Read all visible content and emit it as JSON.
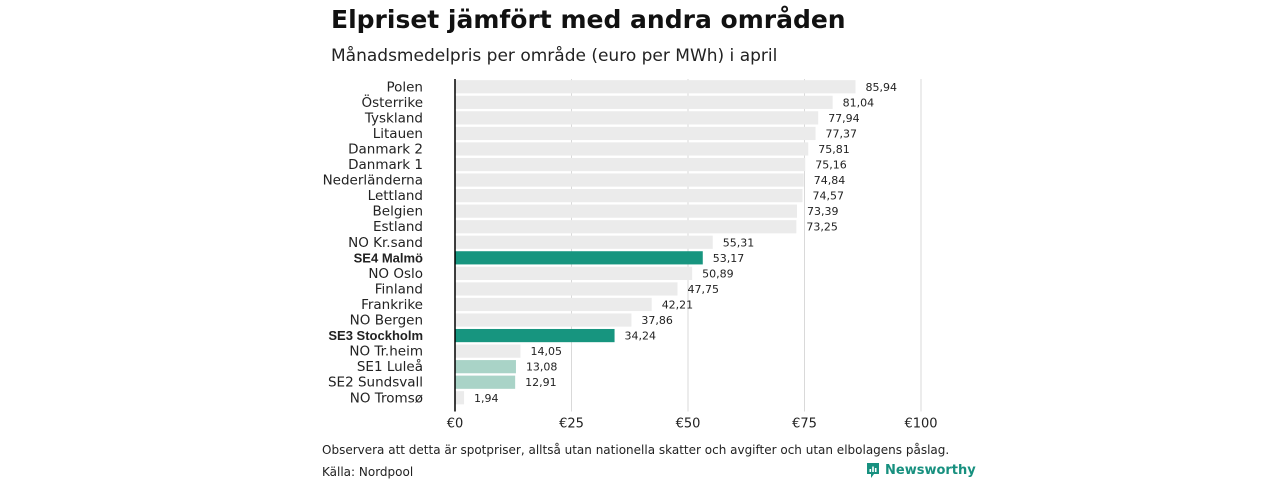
{
  "header": {
    "title": "Elpriset jämfört med andra områden",
    "subtitle": "Månadsmedelpris per område (euro per MWh) i april"
  },
  "footer": {
    "note": "Observera att detta är spotpriser, alltså utan nationella skatter och avgifter och utan elbolagens påslag.",
    "source": "Källa: Nordpool",
    "brand": "Newsworthy"
  },
  "colors": {
    "default_bar": "#ebebeb",
    "highlight_bar": "#17957f",
    "light_highlight_bar": "#a9d3c7",
    "grid": "#d9d9d9",
    "axis": "#000000",
    "brand": "#17907f"
  },
  "chart_data": {
    "type": "bar",
    "orientation": "horizontal",
    "xlim": [
      0,
      100
    ],
    "x_ticks": [
      0,
      25,
      50,
      75,
      100
    ],
    "x_tick_labels": [
      "€0",
      "€25",
      "€50",
      "€75",
      "€100"
    ],
    "grid": true,
    "categories": [
      "Polen",
      "Österrike",
      "Tyskland",
      "Litauen",
      "Danmark  2",
      "Danmark  1",
      "Nederländerna",
      "Lettland",
      "Belgien",
      "Estland",
      "NO Kr.sand",
      "SE4 Malmö",
      "NO Oslo",
      "Finland",
      "Frankrike",
      "NO Bergen",
      "SE3 Stockholm",
      "NO Tr.heim",
      "SE1  Luleå",
      "SE2  Sundsvall",
      "NO Tromsø"
    ],
    "values": [
      85.94,
      81.04,
      77.94,
      77.37,
      75.81,
      75.16,
      74.84,
      74.57,
      73.39,
      73.25,
      55.31,
      53.17,
      50.89,
      47.75,
      42.21,
      37.86,
      34.24,
      14.05,
      13.08,
      12.91,
      1.94
    ],
    "value_labels": [
      "85,94",
      "81,04",
      "77,94",
      "77,37",
      "75,81",
      "75,16",
      "74,84",
      "74,57",
      "73,39",
      "73,25",
      "55,31",
      "53,17",
      "50,89",
      "47,75",
      "42,21",
      "37,86",
      "34,24",
      "14,05",
      "13,08",
      "12,91",
      "1,94"
    ],
    "highlight": [
      "none",
      "none",
      "none",
      "none",
      "none",
      "none",
      "none",
      "none",
      "none",
      "none",
      "none",
      "strong",
      "none",
      "none",
      "none",
      "none",
      "strong",
      "none",
      "light",
      "light",
      "none"
    ]
  }
}
